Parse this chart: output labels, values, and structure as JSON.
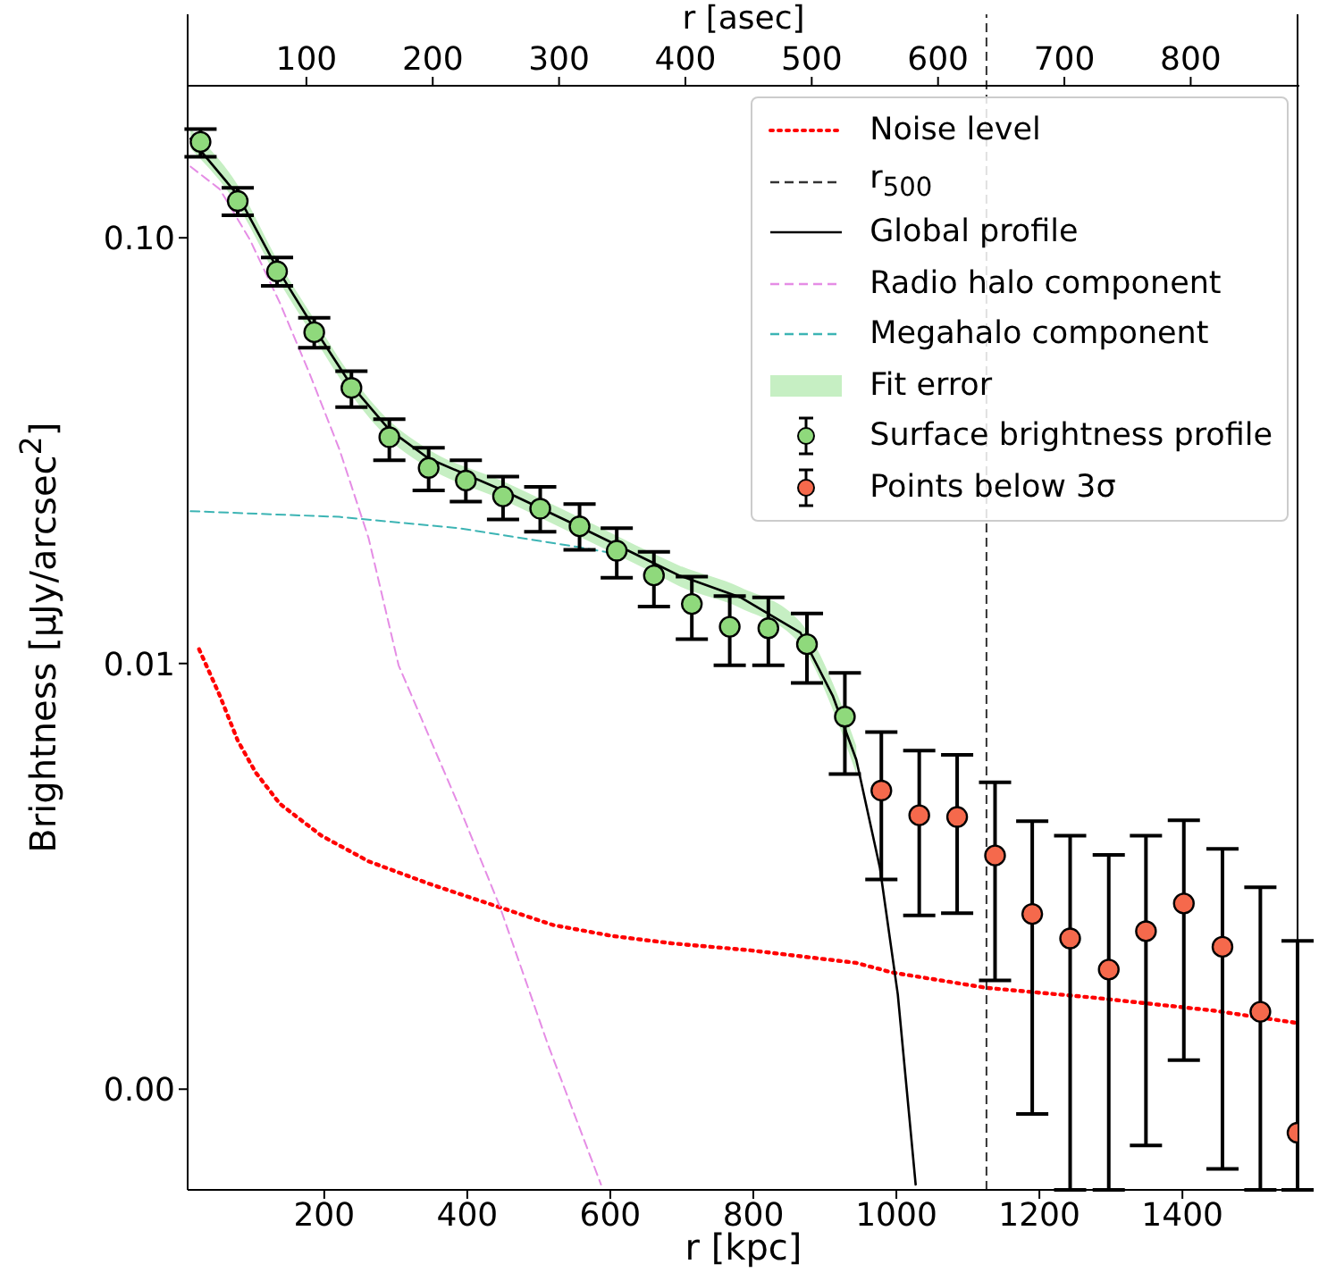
{
  "chart_data": {
    "type": "line",
    "xlabel": "r [kpc]",
    "x2label": "r [asec]",
    "ylabel": "Brightness [μJy/arcsec$^{2}$]",
    "xlim": [
      9,
      1561
    ],
    "xticks": [
      200,
      400,
      600,
      800,
      1000,
      1200,
      1400
    ],
    "x2lim": [
      6,
      886
    ],
    "x2ticks": [
      100,
      200,
      300,
      400,
      500,
      600,
      700,
      800
    ],
    "ylim": [
      0.00058,
      0.335
    ],
    "yticks": [
      {
        "value": 0.001,
        "label": "0.00"
      },
      0.01,
      {
        "value": 0.1,
        "label": "0.10"
      }
    ],
    "log": "y",
    "grid": false,
    "legend": "top right",
    "ref_lines": [
      {
        "axis": "x",
        "value": 1126,
        "label": "r$_{500}$",
        "color": "#333333",
        "line_style": "dashed"
      }
    ],
    "series": [
      {
        "name": "Noise level",
        "color": "#ff0000",
        "line_style": "dotted",
        "x": [
          25,
          54,
          79,
          104,
          138,
          196,
          262,
          346,
          438,
          520,
          603,
          687,
          795,
          944,
          994,
          1126,
          1277,
          1443,
          1561
        ],
        "values": [
          0.0108,
          0.0084,
          0.00659,
          0.00555,
          0.00468,
          0.00394,
          0.00343,
          0.00304,
          0.0027,
          0.00243,
          0.00229,
          0.0022,
          0.00212,
          0.00198,
          0.00188,
          0.00173,
          0.00164,
          0.00153,
          0.00143
        ]
      },
      {
        "name": "Global profile",
        "color": "#000000",
        "line_style": "solid",
        "x": [
          13,
          79,
          134,
          186,
          238,
          291,
          346,
          450,
          553,
          661,
          696,
          782,
          866,
          911,
          944,
          977,
          1002,
          1027
        ],
        "values": [
          0.171,
          0.126,
          0.0848,
          0.0613,
          0.045,
          0.0354,
          0.0303,
          0.0255,
          0.0211,
          0.0172,
          0.0161,
          0.0143,
          0.0118,
          0.0084,
          0.00594,
          0.00331,
          0.00167,
          0.000597
        ]
      },
      {
        "name": "Radio halo component",
        "color": "#e58de5",
        "line_style": "dashed",
        "x": [
          13,
          54,
          96,
          138,
          179,
          221,
          262,
          304,
          387,
          445,
          513,
          587
        ],
        "values": [
          0.147,
          0.13,
          0.099,
          0.0703,
          0.0482,
          0.0319,
          0.0197,
          0.0099,
          0.00468,
          0.0027,
          0.00127,
          0.000597
        ]
      },
      {
        "name": "Megahalo component",
        "color": "#3cb4b4",
        "line_style": "dashed",
        "x": [
          13,
          221,
          387,
          553,
          609
        ],
        "values": [
          0.0228,
          0.0221,
          0.0208,
          0.0188,
          0.0181
        ]
      },
      {
        "name": "Fit error",
        "type": "area",
        "color": "#c6efc3",
        "x": [
          13,
          79,
          134,
          186,
          238,
          291,
          346,
          450,
          553,
          661,
          696,
          782,
          866,
          911,
          944
        ],
        "values": [
          null,
          null,
          null,
          null,
          null,
          null,
          null,
          null,
          null,
          null,
          null,
          null,
          null,
          null,
          null
        ],
        "lower": [
          0.162,
          0.119,
          0.0805,
          0.0582,
          0.0427,
          0.0336,
          0.0288,
          0.0242,
          0.02,
          0.0163,
          0.0152,
          0.0135,
          0.0111,
          0.0078,
          0.0055
        ],
        "upper": [
          0.18,
          0.133,
          0.089,
          0.0644,
          0.0473,
          0.0372,
          0.0318,
          0.0268,
          0.0222,
          0.0181,
          0.017,
          0.0151,
          0.0125,
          0.009,
          0.0064
        ]
      },
      {
        "name": "Surface brightness profile",
        "type": "scatter",
        "marker": "circle",
        "color": "#8fd97c",
        "x": [
          27,
          79,
          134,
          186,
          238,
          291,
          346,
          398,
          450,
          502,
          557,
          609,
          661,
          714,
          767,
          821,
          875,
          928
        ],
        "values": [
          0.168,
          0.122,
          0.0834,
          0.06,
          0.0444,
          0.034,
          0.0288,
          0.0269,
          0.0247,
          0.0231,
          0.021,
          0.0184,
          0.0161,
          0.0138,
          0.0122,
          0.0121,
          0.0111,
          0.0075
        ],
        "errors": [
          [
            0.155,
            0.18
          ],
          [
            0.113,
            0.131
          ],
          [
            0.0771,
            0.0899
          ],
          [
            0.0552,
            0.0649
          ],
          [
            0.04,
            0.0486
          ],
          [
            0.03,
            0.0375
          ],
          [
            0.0255,
            0.0321
          ],
          [
            0.024,
            0.03
          ],
          [
            0.0218,
            0.0275
          ],
          [
            0.0204,
            0.026
          ],
          [
            0.0185,
            0.0237
          ],
          [
            0.0159,
            0.0208
          ],
          [
            0.0136,
            0.0183
          ],
          [
            0.0114,
            0.016
          ],
          [
            0.0099,
            0.0144
          ],
          [
            0.0099,
            0.0143
          ],
          [
            0.009,
            0.0131
          ],
          [
            0.0055,
            0.0095
          ]
        ]
      },
      {
        "name": "Points below 3σ",
        "type": "scatter",
        "marker": "circle",
        "color": "#f5694c",
        "x": [
          979,
          1032,
          1085,
          1138,
          1190,
          1243,
          1297,
          1349,
          1402,
          1456,
          1509,
          1561
        ],
        "values": [
          0.00503,
          0.0044,
          0.00436,
          0.00354,
          0.00258,
          0.00226,
          0.00191,
          0.00235,
          0.00273,
          0.00216,
          0.00152,
          0.00079
        ],
        "errors": [
          [
            0.00311,
            0.0069
          ],
          [
            0.00256,
            0.00624
          ],
          [
            0.00259,
            0.0061
          ],
          [
            0.0018,
            0.00526
          ],
          [
            0.000875,
            0.00426
          ],
          [
            0.00058,
            0.00394
          ],
          [
            0.00058,
            0.00355
          ],
          [
            0.000738,
            0.00394
          ],
          [
            0.00117,
            0.00428
          ],
          [
            0.00065,
            0.00367
          ],
          [
            0.00058,
            0.00298
          ],
          [
            0.00058,
            0.00223
          ]
        ]
      }
    ]
  }
}
